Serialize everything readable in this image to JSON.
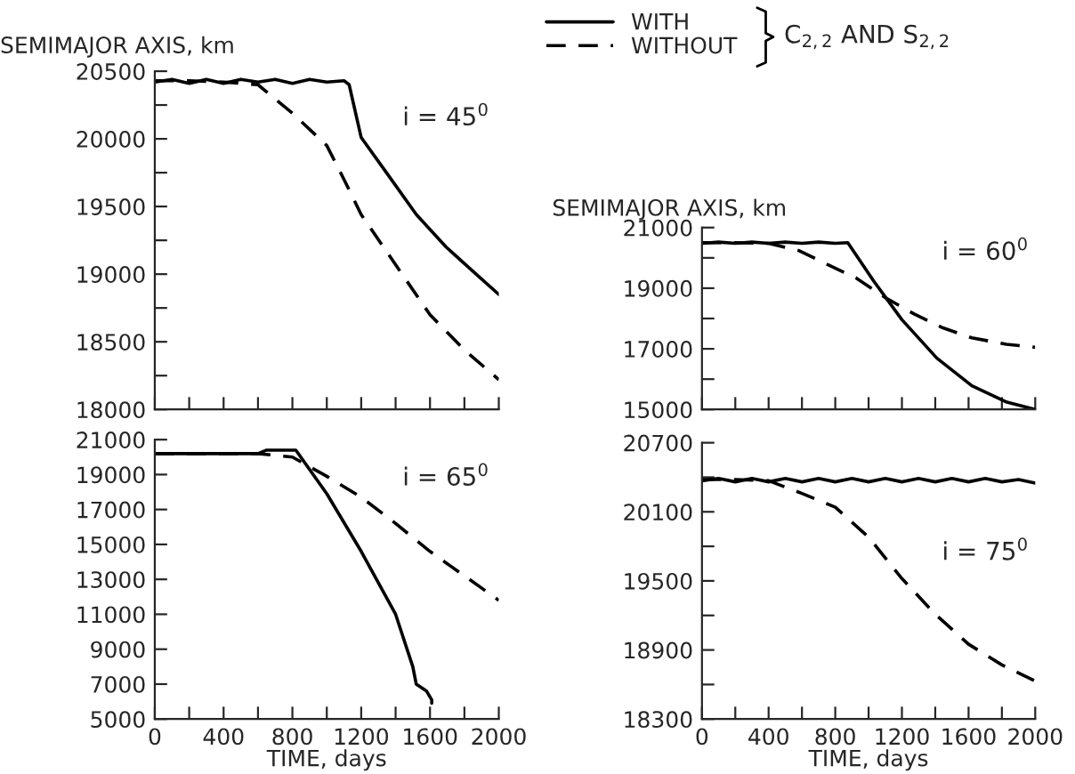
{
  "chart_data": [
    {
      "type": "line",
      "ylabel": "SEMIMAJOR AXIS, km",
      "annotations": [
        "i = 45$^{0}$"
      ],
      "xlim": [
        0,
        2000
      ],
      "ylim": [
        18000,
        20500
      ],
      "tick_labels": "y",
      "grid": false,
      "legend": false,
      "xticks": [
        0,
        200,
        400,
        600,
        800,
        1000,
        1200,
        1400,
        1600,
        1800,
        2000
      ],
      "yticks": [
        18000,
        {
          "value": 18250,
          "label": null
        },
        18500,
        {
          "value": 18750,
          "label": null
        },
        19000,
        {
          "value": 19250,
          "label": null
        },
        19500,
        {
          "value": 19750,
          "label": null
        },
        20000,
        {
          "value": 20250,
          "label": null
        },
        20500
      ],
      "series": [
        {
          "color": "#000000",
          "line_style": "solid",
          "x": [
            0,
            100,
            200,
            300,
            400,
            500,
            600,
            700,
            800,
            900,
            1000,
            1100,
            1130,
            1200,
            1347,
            1521,
            1694,
            1868,
            2000
          ],
          "values": [
            20420,
            20440,
            20410,
            20440,
            20410,
            20440,
            20420,
            20440,
            20410,
            20440,
            20420,
            20430,
            20400,
            20010,
            19750,
            19440,
            19200,
            19000,
            18850
          ]
        },
        {
          "color": "#000000",
          "line_style": "dashed",
          "x": [
            0,
            200,
            400,
            600,
            800,
            1000,
            1100,
            1200,
            1400,
            1600,
            1800,
            2000
          ],
          "values": [
            20430,
            20430,
            20420,
            20400,
            20190,
            19950,
            19700,
            19440,
            19070,
            18700,
            18440,
            18220
          ]
        }
      ]
    },
    {
      "type": "line",
      "ylabel": "SEMIMAJOR AXIS, km",
      "annotations": [
        "i = 60$^{0}$",
        "C$_{2,2}$ AND S$_{2,2}$"
      ],
      "xlim": [
        0,
        2000
      ],
      "ylim": [
        15000,
        21000
      ],
      "tick_labels": "y",
      "grid": false,
      "legend": "top",
      "xticks": [
        0,
        200,
        400,
        600,
        800,
        1000,
        1200,
        1400,
        1600,
        1800,
        2000
      ],
      "yticks": [
        15000,
        {
          "value": 16000,
          "label": null
        },
        17000,
        {
          "value": 18000,
          "label": null
        },
        19000,
        {
          "value": 20000,
          "label": null
        },
        21000
      ],
      "series": [
        {
          "name": "WITH",
          "color": "#000000",
          "line_style": "solid",
          "x": [
            0,
            100,
            200,
            300,
            400,
            500,
            600,
            700,
            800,
            875,
            1030,
            1200,
            1410,
            1620,
            1830,
            2000
          ],
          "values": [
            20480,
            20520,
            20480,
            20520,
            20480,
            20520,
            20480,
            20520,
            20480,
            20500,
            19240,
            17960,
            16690,
            15780,
            15240,
            15000
          ]
        },
        {
          "name": "WITHOUT",
          "color": "#000000",
          "line_style": "dashed",
          "x": [
            0,
            200,
            400,
            581,
            754,
            927,
            1100,
            1273,
            1446,
            1620,
            1827,
            2000
          ],
          "values": [
            20500,
            20500,
            20480,
            20240,
            19780,
            19330,
            18690,
            18150,
            17690,
            17360,
            17150,
            17050
          ]
        }
      ]
    },
    {
      "type": "line",
      "xlabel": "TIME, days",
      "annotations": [
        "i = 65$^{0}$"
      ],
      "xlim": [
        0,
        2000
      ],
      "ylim": [
        5000,
        21000
      ],
      "grid": false,
      "legend": false,
      "xticks": [
        0,
        {
          "value": 200,
          "label": null
        },
        400,
        {
          "value": 600,
          "label": null
        },
        800,
        {
          "value": 1000,
          "label": null
        },
        1200,
        {
          "value": 1400,
          "label": null
        },
        1600,
        {
          "value": 1800,
          "label": null
        },
        2000
      ],
      "yticks": [
        5000,
        7000,
        9000,
        11000,
        13000,
        15000,
        17000,
        19000,
        21000
      ],
      "series": [
        {
          "color": "#000000",
          "line_style": "solid",
          "x": [
            0,
            200,
            400,
            600,
            650,
            820,
            1000,
            1200,
            1400,
            1500,
            1520,
            1580,
            1610,
            1610
          ],
          "values": [
            20200,
            20200,
            20200,
            20200,
            20400,
            20400,
            17900,
            14600,
            11000,
            8000,
            7000,
            6600,
            6100,
            5900
          ]
        },
        {
          "color": "#000000",
          "line_style": "dashed",
          "x": [
            0,
            200,
            400,
            600,
            800,
            1000,
            1200,
            1400,
            1600,
            1800,
            2000
          ],
          "values": [
            20200,
            20200,
            20200,
            20200,
            20000,
            18900,
            17700,
            16200,
            14600,
            13200,
            11800
          ]
        }
      ]
    },
    {
      "type": "line",
      "xlabel": "TIME, days",
      "annotations": [
        "i = 75$^{0}$"
      ],
      "xlim": [
        0,
        2000
      ],
      "ylim": [
        18300,
        20700
      ],
      "grid": false,
      "legend": false,
      "xticks": [
        0,
        {
          "value": 200,
          "label": null
        },
        400,
        {
          "value": 600,
          "label": null
        },
        800,
        {
          "value": 1000,
          "label": null
        },
        1200,
        {
          "value": 1400,
          "label": null
        },
        1600,
        {
          "value": 1800,
          "label": null
        },
        2000
      ],
      "yticks": [
        18300,
        {
          "value": 18600,
          "label": null
        },
        18900,
        {
          "value": 19200,
          "label": null
        },
        19500,
        {
          "value": 19800,
          "label": null
        },
        20100,
        {
          "value": 20400,
          "label": null
        },
        20700
      ],
      "series": [
        {
          "color": "#000000",
          "line_style": "solid",
          "x": [
            0,
            100,
            200,
            300,
            400,
            500,
            600,
            700,
            800,
            900,
            1000,
            1100,
            1200,
            1300,
            1400,
            1500,
            1600,
            1700,
            1800,
            1900,
            2000
          ],
          "values": [
            20370,
            20390,
            20360,
            20390,
            20360,
            20390,
            20360,
            20390,
            20360,
            20390,
            20360,
            20390,
            20360,
            20390,
            20360,
            20390,
            20360,
            20390,
            20360,
            20380,
            20350
          ]
        },
        {
          "color": "#000000",
          "line_style": "dashed",
          "x": [
            0,
            200,
            400,
            600,
            800,
            1000,
            1200,
            1400,
            1600,
            1800,
            2000
          ],
          "values": [
            20380,
            20380,
            20370,
            20260,
            20140,
            19880,
            19520,
            19210,
            18950,
            18770,
            18630
          ]
        }
      ]
    }
  ]
}
